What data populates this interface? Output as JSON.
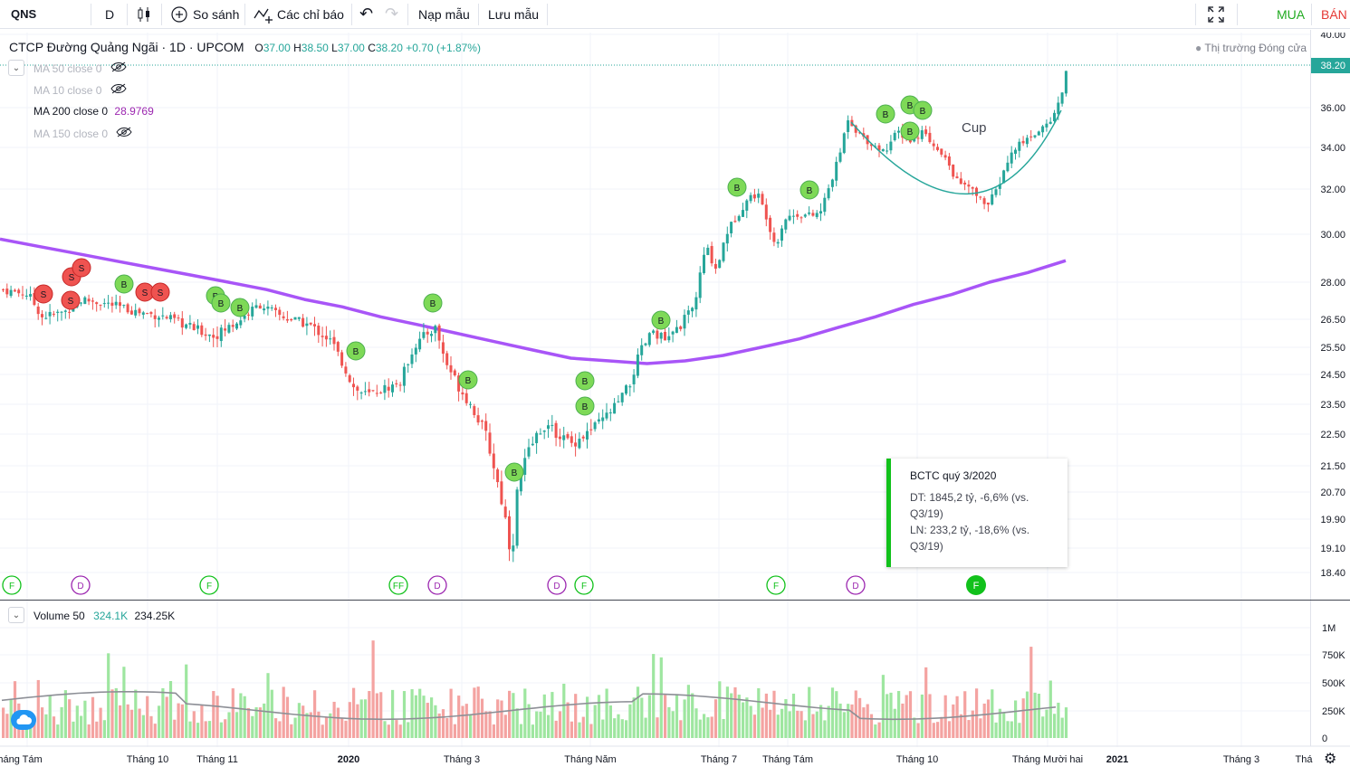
{
  "toolbar": {
    "symbol": "QNS",
    "interval": "D",
    "compare": "So sánh",
    "indicators": "Các chỉ báo",
    "templates": "Nạp mẫu",
    "save": "Lưu mẫu",
    "buy": "MUA",
    "sell": "BÁN"
  },
  "legend": {
    "title": "CTCP Đường Quảng Ngãi · 1D · UPCOM",
    "open_label": "O",
    "open": "37.00",
    "high_label": "H",
    "high": "38.50",
    "low_label": "L",
    "low": "37.00",
    "close_label": "C",
    "close": "38.20",
    "change": "+0.70 (+1.87%)",
    "market_status": "Thị trường Đóng cửa"
  },
  "indicators": [
    {
      "label": "MA 50 close 0",
      "value": "",
      "hidden": true
    },
    {
      "label": "MA 10 close 0",
      "value": "",
      "hidden": true
    },
    {
      "label": "MA 200 close 0",
      "value": "28.9769",
      "hidden": false
    },
    {
      "label": "MA 150 close 0",
      "value": "",
      "hidden": true
    }
  ],
  "annotation": {
    "cup": "Cup"
  },
  "tooltip": {
    "title": "BCTC quý 3/2020",
    "line1": "DT: 1845,2 tỷ, -6,6% (vs.",
    "line1b": "Q3/19)",
    "line2": "LN: 233,2 tỷ, -18,6% (vs.",
    "line2b": "Q3/19)"
  },
  "volume": {
    "label": "Volume 50",
    "value": "324.1K",
    "ma": "234.25K"
  },
  "colors": {
    "up": "#26a69a",
    "down": "#ef5350",
    "ma200": "#a855f7",
    "buy": "#11c11b",
    "sell": "#ef5350"
  },
  "chart_data": {
    "type": "candlestick",
    "price_axis": [
      "40.00",
      "36.00",
      "34.00",
      "32.00",
      "30.00",
      "28.00",
      "26.50",
      "25.50",
      "24.50",
      "23.50",
      "22.50",
      "21.50",
      "20.70",
      "19.90",
      "19.10",
      "18.40"
    ],
    "last_price": "38.20",
    "volume_axis": [
      "1M",
      "750K",
      "500K",
      "250K",
      "0"
    ],
    "time_axis": [
      "háng Tám",
      "Tháng 10",
      "Tháng 11",
      "2020",
      "Tháng 3",
      "Tháng Năm",
      "Tháng 7",
      "Tháng Tám",
      "Tháng 10",
      "Tháng Mười hai",
      "2021",
      "Tháng 3",
      "Thá"
    ],
    "ylim": [
      18.4,
      40
    ],
    "ma200": [
      29.8,
      29.5,
      29.2,
      28.9,
      28.6,
      28.3,
      28.0,
      27.7,
      27.3,
      27.0,
      26.6,
      26.3,
      26.0,
      25.7,
      25.4,
      25.1,
      25.0,
      24.9,
      25.0,
      25.2,
      25.5,
      25.8,
      26.2,
      26.6,
      27.1,
      27.5,
      28.0,
      28.4,
      28.9
    ],
    "markers": [
      "S",
      "S",
      "S",
      "S",
      "S",
      "B",
      "S",
      "B",
      "B",
      "B",
      "B",
      "B",
      "B",
      "B",
      "B",
      "B",
      "B",
      "B",
      "B",
      "B",
      "B",
      "B",
      "B",
      "S",
      "S",
      "B"
    ],
    "events": [
      "F",
      "D",
      "F",
      "FF",
      "D",
      "D",
      "F",
      "F",
      "D",
      "F"
    ]
  }
}
